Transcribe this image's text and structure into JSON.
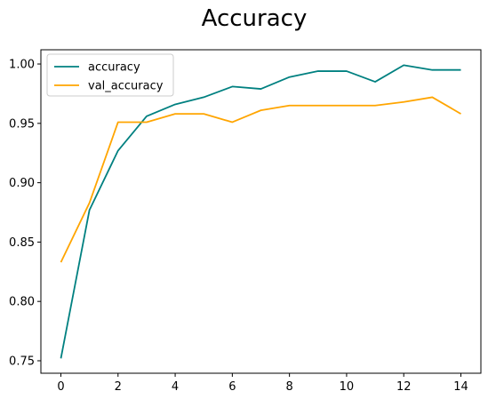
{
  "chart_data": {
    "type": "line",
    "title": "Accuracy",
    "xlabel": "",
    "ylabel": "",
    "x": [
      0,
      1,
      2,
      3,
      4,
      5,
      6,
      7,
      8,
      9,
      10,
      11,
      12,
      13,
      14
    ],
    "xlim": [
      -0.7,
      14.7
    ],
    "ylim": [
      0.7395,
      1.012
    ],
    "xticks": [
      0,
      2,
      4,
      6,
      8,
      10,
      12,
      14
    ],
    "xtick_labels": [
      "0",
      "2",
      "4",
      "6",
      "8",
      "10",
      "12",
      "14"
    ],
    "yticks": [
      0.75,
      0.8,
      0.85,
      0.9,
      0.95,
      1.0
    ],
    "ytick_labels": [
      "0.75",
      "0.80",
      "0.85",
      "0.90",
      "0.95",
      "1.00"
    ],
    "grid": false,
    "legend_position": "top-left",
    "series": [
      {
        "name": "accuracy",
        "color": "#008080",
        "values": [
          0.752,
          0.877,
          0.927,
          0.956,
          0.966,
          0.972,
          0.981,
          0.979,
          0.989,
          0.994,
          0.994,
          0.985,
          0.999,
          0.995,
          0.995
        ]
      },
      {
        "name": "val_accuracy",
        "color": "#FFA500",
        "values": [
          0.833,
          0.883,
          0.951,
          0.951,
          0.958,
          0.958,
          0.951,
          0.961,
          0.965,
          0.965,
          0.965,
          0.965,
          0.968,
          0.972,
          0.958
        ]
      }
    ]
  }
}
